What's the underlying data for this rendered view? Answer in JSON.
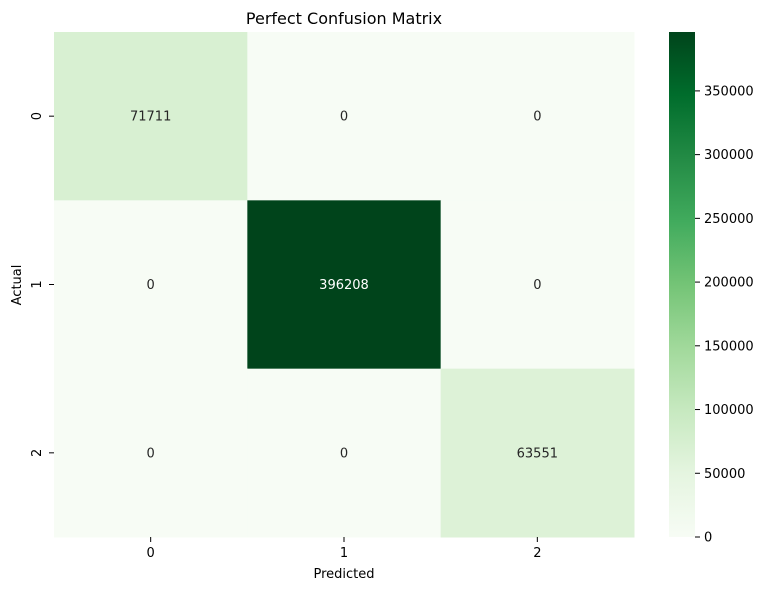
{
  "chart_data": {
    "type": "heatmap",
    "title": "Perfect Confusion Matrix",
    "xlabel": "Predicted",
    "ylabel": "Actual",
    "x_categories": [
      "0",
      "1",
      "2"
    ],
    "y_categories": [
      "0",
      "1",
      "2"
    ],
    "values": [
      [
        71711,
        0,
        0
      ],
      [
        0,
        396208,
        0
      ],
      [
        0,
        0,
        63551
      ]
    ],
    "colormap": "Greens",
    "vmin": 0,
    "vmax": 396208,
    "colorbar_ticks": [
      0,
      50000,
      100000,
      150000,
      200000,
      250000,
      300000,
      350000
    ],
    "colors": {
      "low": "#f7fcf5",
      "high": "#00441b"
    }
  }
}
